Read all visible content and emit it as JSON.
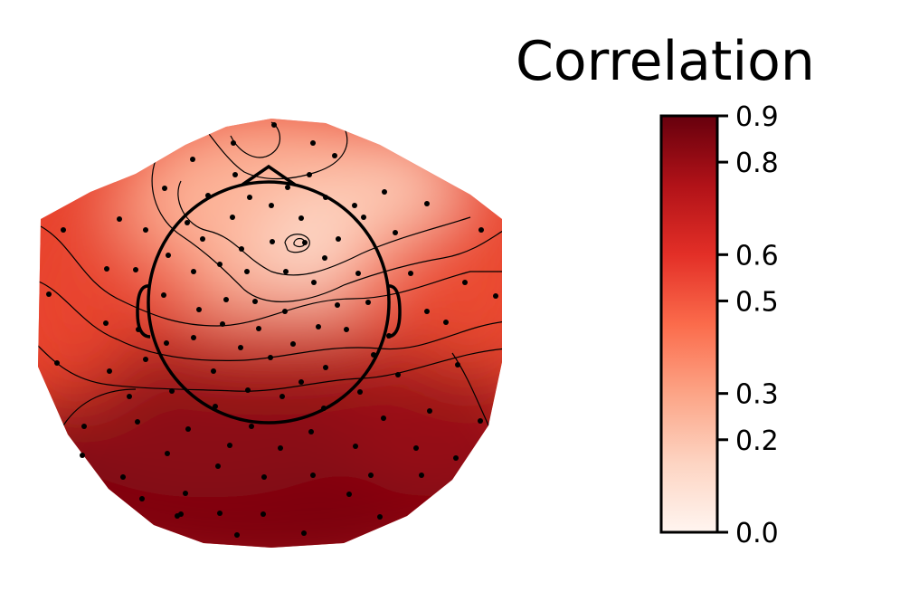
{
  "chart_data": {
    "type": "heatmap",
    "title": "",
    "colorbar": {
      "title": "Correlation",
      "min": 0.0,
      "max": 0.9,
      "ticks": [
        0.0,
        0.2,
        0.3,
        0.5,
        0.6,
        0.8,
        0.9
      ],
      "tick_labels": [
        "0.0",
        "0.2",
        "0.3",
        "0.5",
        "0.6",
        "0.8",
        "0.9"
      ],
      "colormap": "Reds",
      "stops": [
        {
          "v": 0.0,
          "color": "#fff5f0"
        },
        {
          "v": 0.15,
          "color": "#fdd4c2"
        },
        {
          "v": 0.3,
          "color": "#fca486"
        },
        {
          "v": 0.45,
          "color": "#fb6b4b"
        },
        {
          "v": 0.6,
          "color": "#e32f27"
        },
        {
          "v": 0.75,
          "color": "#b11218"
        },
        {
          "v": 0.9,
          "color": "#67000d"
        }
      ]
    },
    "head_outline": true,
    "sensors_shown": true
  }
}
